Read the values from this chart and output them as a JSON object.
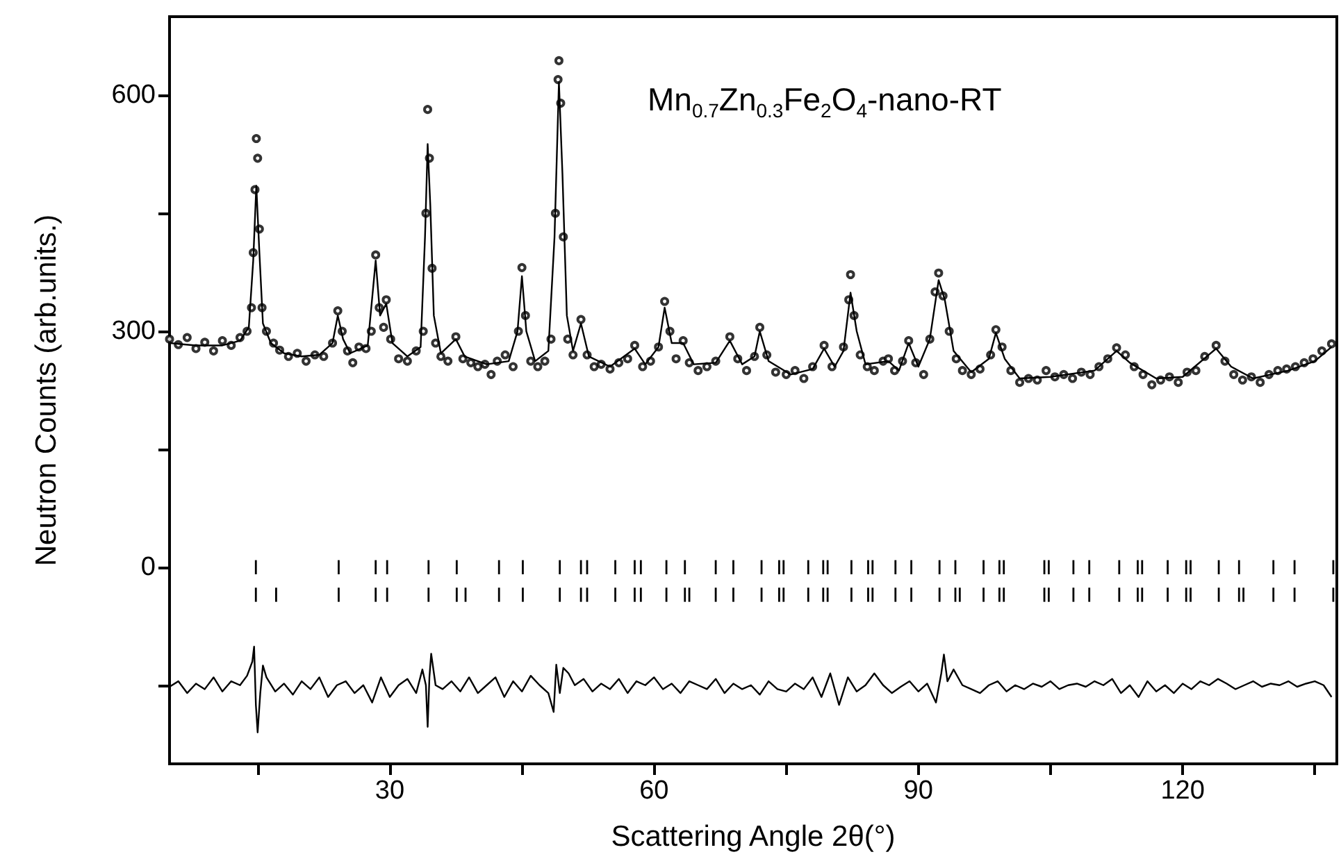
{
  "chart_data": {
    "type": "scatter",
    "xlabel": "Scattering Angle 2θ(°)",
    "ylabel": "Neutron Counts (arb.units.)",
    "annotations": [
      "Mn$_{0.7}$Zn$_{0.3}$Fe$_{2}$O$_{4}$-nano-RT"
    ],
    "xlim": [
      5,
      137.5
    ],
    "xticks": [
      {
        "value": 15,
        "label": null
      },
      30,
      {
        "value": 45,
        "label": null
      },
      60,
      {
        "value": 75,
        "label": null
      },
      90,
      {
        "value": 105,
        "label": null
      },
      120,
      {
        "value": 135,
        "label": null
      }
    ],
    "ylim": [
      -250,
      700
    ],
    "yticks": [
      {
        "value": -150,
        "label": null
      },
      0,
      {
        "value": 150,
        "label": null
      },
      300,
      {
        "value": 450,
        "label": null
      },
      600
    ],
    "series": [
      {
        "marker": "circle",
        "color": "#000000",
        "x": [
          5,
          6,
          7,
          8,
          9,
          10,
          11,
          12,
          13,
          13.8,
          14.3,
          14.5,
          14.7,
          14.85,
          15.0,
          15.2,
          15.5,
          16,
          16.8,
          17.5,
          18.5,
          19.5,
          20.5,
          21.5,
          22.5,
          23.5,
          24.1,
          24.6,
          25.2,
          25.8,
          26.5,
          27.3,
          27.9,
          28.4,
          28.8,
          29.3,
          29.6,
          30.1,
          31,
          32,
          33,
          33.8,
          34.1,
          34.3,
          34.5,
          34.8,
          35.2,
          35.8,
          36.6,
          37.5,
          38.3,
          39.2,
          40,
          40.8,
          41.5,
          42.2,
          43.1,
          44,
          44.6,
          45.0,
          45.4,
          46,
          46.8,
          47.6,
          48.3,
          48.8,
          49.1,
          49.2,
          49.4,
          49.7,
          50.2,
          50.8,
          51.7,
          52.4,
          53.2,
          54,
          55,
          56,
          57,
          57.8,
          58.7,
          59.6,
          60.5,
          61.2,
          61.8,
          62.5,
          63.3,
          64,
          65,
          66,
          67,
          68.6,
          69.5,
          70.5,
          71.4,
          72.0,
          72.8,
          73.8,
          75,
          76,
          77,
          78,
          79.3,
          80.2,
          81.5,
          82.1,
          82.3,
          82.7,
          83.4,
          84.2,
          85,
          86,
          86.6,
          87.3,
          88.2,
          88.9,
          89.7,
          90.6,
          91.3,
          91.9,
          92.3,
          92.8,
          93.5,
          94.3,
          95,
          96,
          97,
          98.2,
          98.8,
          99.5,
          100.5,
          101.5,
          102.5,
          103.5,
          104.5,
          105.5,
          106.5,
          107.5,
          108.5,
          109.5,
          110.5,
          111.5,
          112.5,
          113.5,
          114.5,
          115.5,
          116.5,
          117.5,
          118.5,
          119.5,
          120.5,
          121.5,
          122.5,
          123.8,
          124.8,
          125.8,
          126.8,
          127.8,
          128.8,
          129.8,
          130.8,
          131.8,
          132.8,
          133.8,
          134.8,
          135.8,
          136.9
        ],
        "values": [
          290,
          283,
          292,
          278,
          286,
          275,
          288,
          282,
          292,
          300,
          330,
          400,
          480,
          545,
          520,
          430,
          330,
          300,
          285,
          276,
          268,
          272,
          262,
          270,
          268,
          285,
          326,
          300,
          275,
          260,
          280,
          278,
          300,
          397,
          330,
          305,
          340,
          290,
          265,
          262,
          275,
          300,
          450,
          582,
          520,
          380,
          285,
          268,
          262,
          293,
          265,
          260,
          255,
          258,
          245,
          262,
          270,
          255,
          300,
          381,
          320,
          262,
          255,
          262,
          290,
          450,
          620,
          644,
          590,
          420,
          290,
          270,
          315,
          270,
          255,
          258,
          252,
          260,
          265,
          282,
          255,
          262,
          280,
          338,
          300,
          265,
          288,
          260,
          250,
          255,
          262,
          293,
          265,
          250,
          268,
          305,
          270,
          248,
          245,
          250,
          240,
          255,
          282,
          255,
          280,
          340,
          372,
          320,
          270,
          255,
          250,
          262,
          265,
          250,
          262,
          288,
          260,
          245,
          290,
          350,
          374,
          345,
          300,
          265,
          250,
          245,
          252,
          270,
          302,
          280,
          250,
          235,
          240,
          238,
          250,
          242,
          245,
          240,
          248,
          245,
          255,
          265,
          279,
          270,
          255,
          245,
          232,
          238,
          242,
          235,
          248,
          250,
          268,
          282,
          262,
          245,
          238,
          242,
          235,
          245,
          250,
          252,
          255,
          260,
          265,
          275,
          284
        ]
      },
      {
        "type": "line",
        "marker": "none",
        "color": "#000000",
        "x": [
          5,
          8,
          11,
          13,
          14,
          14.5,
          14.85,
          15.2,
          15.6,
          16.5,
          18,
          20,
          22,
          23.5,
          24.1,
          24.7,
          25.5,
          27.5,
          28.4,
          28.9,
          29.6,
          30.3,
          32,
          33.5,
          34,
          34.3,
          34.6,
          35,
          35.8,
          37.5,
          38.5,
          41,
          43.5,
          44.5,
          45.0,
          45.5,
          46.5,
          48,
          48.7,
          49.2,
          49.6,
          50.1,
          50.8,
          51.7,
          52.6,
          55,
          57.8,
          59,
          60.5,
          61.2,
          62,
          63.3,
          64.5,
          67,
          68.6,
          70,
          71.4,
          72.0,
          73,
          75.5,
          78,
          79.3,
          80.5,
          81.5,
          82.3,
          83,
          84,
          86.6,
          87.8,
          88.9,
          90,
          91.3,
          92.3,
          93,
          94,
          96,
          98,
          98.8,
          99.8,
          101.5,
          105,
          110,
          112.5,
          114,
          117,
          120,
          123.8,
          125.5,
          128,
          132,
          135,
          136.9
        ],
        "values": [
          285,
          282,
          282,
          288,
          305,
          390,
          485,
          400,
          310,
          285,
          272,
          268,
          270,
          285,
          320,
          290,
          272,
          282,
          390,
          320,
          335,
          285,
          268,
          280,
          420,
          538,
          460,
          320,
          272,
          290,
          268,
          258,
          262,
          300,
          370,
          300,
          262,
          275,
          420,
          617,
          500,
          320,
          275,
          310,
          268,
          255,
          278,
          258,
          280,
          330,
          285,
          285,
          258,
          260,
          288,
          258,
          268,
          300,
          262,
          245,
          252,
          278,
          255,
          275,
          349,
          300,
          258,
          262,
          250,
          285,
          255,
          290,
          365,
          340,
          275,
          248,
          265,
          298,
          265,
          240,
          242,
          250,
          275,
          260,
          240,
          242,
          278,
          255,
          240,
          250,
          262,
          280
        ]
      },
      {
        "type": "bar",
        "color": "#000000",
        "x": [
          14.8,
          17.1,
          24.2,
          28.4,
          29.7,
          34.4,
          37.6,
          38.6,
          42.4,
          45.1,
          49.3,
          51.7,
          52.4,
          55.6,
          57.8,
          58.5,
          61.4,
          63.5,
          64.0,
          67.0,
          69.0,
          72.2,
          74.2,
          74.7,
          77.5,
          79.2,
          79.7,
          82.4,
          84.3,
          84.8,
          87.4,
          89.2,
          92.4,
          94.2,
          94.7,
          97.4,
          99.2,
          99.7,
          104.3,
          104.8,
          107.6,
          109.4,
          112.8,
          114.9,
          115.4,
          118.3,
          120.4,
          120.9,
          124.1,
          126.4,
          126.9,
          130.3,
          132.7,
          137.1
        ],
        "base": [
          -44,
          -44,
          -44,
          -44,
          -44,
          -44,
          -44,
          -44,
          -44,
          -44,
          -44,
          -44,
          -44,
          -44,
          -44,
          -44,
          -44,
          -44,
          -44,
          -44,
          -44,
          -44,
          -44,
          -44,
          -44,
          -44,
          -44,
          -44,
          -44,
          -44,
          -44,
          -44,
          -44,
          -44,
          -44,
          -44,
          -44,
          -44,
          -44,
          -44,
          -44,
          -44,
          -44,
          -44,
          -44,
          -44,
          -44,
          -44,
          -44,
          -44,
          -44,
          -44,
          -44,
          -44
        ],
        "values": [
          18,
          18,
          18,
          18,
          18,
          18,
          18,
          18,
          18,
          18,
          18,
          18,
          18,
          18,
          18,
          18,
          18,
          18,
          18,
          18,
          18,
          18,
          18,
          18,
          18,
          18,
          18,
          18,
          18,
          18,
          18,
          18,
          18,
          18,
          18,
          18,
          18,
          18,
          18,
          18,
          18,
          18,
          18,
          18,
          18,
          18,
          18,
          18,
          18,
          18,
          18,
          18,
          18,
          18
        ]
      },
      {
        "type": "bar",
        "color": "#000000",
        "x": [
          14.8,
          24.2,
          28.4,
          29.7,
          34.4,
          37.6,
          42.4,
          45.1,
          49.3,
          51.7,
          52.4,
          55.6,
          57.8,
          58.5,
          61.4,
          63.5,
          67.0,
          69.0,
          72.2,
          74.2,
          74.7,
          77.5,
          79.2,
          79.7,
          82.4,
          84.3,
          84.8,
          87.4,
          89.2,
          92.4,
          94.2,
          97.4,
          99.2,
          99.7,
          104.3,
          104.8,
          107.6,
          109.4,
          112.8,
          114.9,
          115.4,
          118.3,
          120.4,
          120.9,
          124.1,
          126.4,
          130.3,
          132.7,
          137.1
        ],
        "base": [
          -9,
          -9,
          -9,
          -9,
          -9,
          -9,
          -9,
          -9,
          -9,
          -9,
          -9,
          -9,
          -9,
          -9,
          -9,
          -9,
          -9,
          -9,
          -9,
          -9,
          -9,
          -9,
          -9,
          -9,
          -9,
          -9,
          -9,
          -9,
          -9,
          -9,
          -9,
          -9,
          -9,
          -9,
          -9,
          -9,
          -9,
          -9,
          -9,
          -9,
          -9,
          -9,
          -9,
          -9,
          -9,
          -9,
          -9,
          -9,
          -9
        ],
        "values": [
          18,
          18,
          18,
          18,
          18,
          18,
          18,
          18,
          18,
          18,
          18,
          18,
          18,
          18,
          18,
          18,
          18,
          18,
          18,
          18,
          18,
          18,
          18,
          18,
          18,
          18,
          18,
          18,
          18,
          18,
          18,
          18,
          18,
          18,
          18,
          18,
          18,
          18,
          18,
          18,
          18,
          18,
          18,
          18,
          18,
          18,
          18,
          18,
          18
        ]
      },
      {
        "type": "line",
        "marker": "none",
        "color": "#000000",
        "x": [
          5,
          6,
          7,
          8,
          9,
          10,
          11,
          12,
          13,
          13.8,
          14.4,
          14.6,
          14.8,
          15.0,
          15.3,
          15.6,
          16,
          17,
          18,
          19,
          20,
          21,
          22,
          23,
          24,
          25,
          26,
          27,
          28,
          29,
          30,
          31,
          32,
          33,
          33.7,
          34.1,
          34.3,
          34.5,
          34.7,
          35.2,
          36,
          37,
          38,
          39,
          40,
          41,
          42,
          43,
          44,
          45,
          46,
          47,
          48,
          48.6,
          48.9,
          49.3,
          49.7,
          50.3,
          51,
          52,
          53,
          54,
          55,
          56,
          57,
          58,
          59,
          60,
          61,
          62,
          63,
          64,
          65,
          66,
          67,
          68,
          69,
          70,
          71,
          72,
          73,
          74,
          75,
          76,
          77,
          78,
          79,
          80,
          81,
          82,
          83,
          84,
          85,
          86,
          87,
          88,
          89,
          90,
          91,
          92,
          92.6,
          92.9,
          93.3,
          94,
          95,
          96,
          97,
          98,
          99,
          100,
          101,
          102,
          103,
          104,
          105,
          106,
          107,
          108,
          109,
          110,
          111,
          112,
          113,
          114,
          115,
          116,
          117,
          118,
          119,
          120,
          121,
          122,
          123,
          124,
          125,
          126,
          127,
          128,
          129,
          130,
          131,
          132,
          133,
          134,
          135,
          136,
          136.9
        ],
        "values": [
          -152,
          -145,
          -160,
          -148,
          -155,
          -140,
          -158,
          -145,
          -150,
          -138,
          -120,
          -101,
          -175,
          -210,
          -160,
          -125,
          -140,
          -158,
          -148,
          -162,
          -145,
          -155,
          -140,
          -165,
          -150,
          -145,
          -160,
          -150,
          -172,
          -140,
          -165,
          -150,
          -142,
          -160,
          -130,
          -150,
          -203,
          -140,
          -110,
          -150,
          -155,
          -145,
          -158,
          -140,
          -160,
          -150,
          -140,
          -165,
          -145,
          -158,
          -138,
          -150,
          -160,
          -184,
          -124,
          -160,
          -128,
          -135,
          -150,
          -142,
          -158,
          -148,
          -155,
          -142,
          -160,
          -145,
          -150,
          -140,
          -155,
          -148,
          -160,
          -145,
          -150,
          -155,
          -142,
          -160,
          -148,
          -155,
          -150,
          -162,
          -145,
          -155,
          -158,
          -148,
          -155,
          -140,
          -165,
          -135,
          -175,
          -140,
          -158,
          -150,
          -135,
          -150,
          -160,
          -152,
          -145,
          -158,
          -148,
          -172,
          -135,
          -111,
          -145,
          -130,
          -150,
          -155,
          -160,
          -150,
          -145,
          -158,
          -150,
          -155,
          -148,
          -152,
          -145,
          -155,
          -150,
          -148,
          -152,
          -145,
          -150,
          -142,
          -160,
          -150,
          -165,
          -145,
          -158,
          -150,
          -160,
          -148,
          -155,
          -145,
          -150,
          -142,
          -148,
          -155,
          -150,
          -145,
          -152,
          -148,
          -150,
          -145,
          -152,
          -148,
          -145,
          -150,
          -165
        ]
      }
    ]
  }
}
